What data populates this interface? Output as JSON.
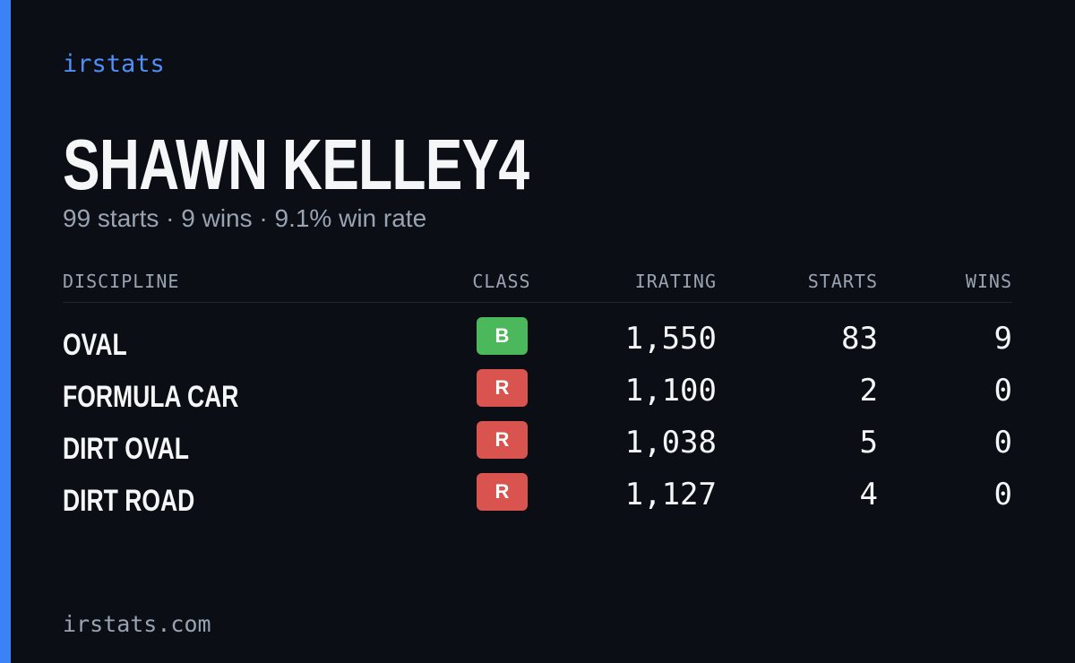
{
  "brand": "irstats",
  "driver": {
    "name": "SHAWN KELLEY4",
    "summary": "99 starts · 9 wins · 9.1% win rate"
  },
  "table": {
    "headers": [
      "DISCIPLINE",
      "CLASS",
      "IRATING",
      "STARTS",
      "WINS"
    ],
    "rows": [
      {
        "discipline": "OVAL",
        "class": "B",
        "class_color": "#4cb85c",
        "irating": "1,550",
        "starts": "83",
        "wins": "9"
      },
      {
        "discipline": "FORMULA CAR",
        "class": "R",
        "class_color": "#d9534f",
        "irating": "1,100",
        "starts": "2",
        "wins": "0"
      },
      {
        "discipline": "DIRT OVAL",
        "class": "R",
        "class_color": "#d9534f",
        "irating": "1,038",
        "starts": "5",
        "wins": "0"
      },
      {
        "discipline": "DIRT ROAD",
        "class": "R",
        "class_color": "#d9534f",
        "irating": "1,127",
        "starts": "4",
        "wins": "0"
      }
    ]
  },
  "footer": "irstats.com"
}
